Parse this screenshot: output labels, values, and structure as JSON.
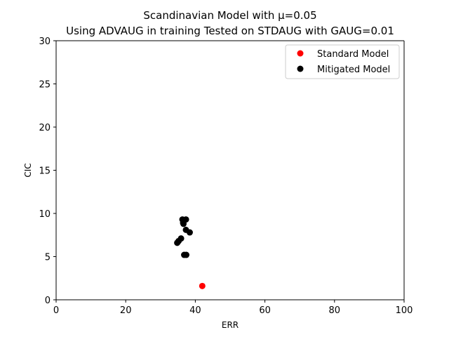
{
  "chart_data": {
    "type": "scatter",
    "title_lines": [
      "Scandinavian Model with μ=0.05",
      "Using ADVAUG in training Tested on STDAUG with GAUG=0.01"
    ],
    "xlabel": "ERR",
    "ylabel": "CIC",
    "xlim": [
      0,
      100
    ],
    "ylim": [
      0,
      30
    ],
    "xticks": [
      0,
      20,
      40,
      60,
      80,
      100
    ],
    "yticks": [
      0,
      5,
      10,
      15,
      20,
      25,
      30
    ],
    "grid": false,
    "legend_position": "top-right",
    "series": [
      {
        "name": "Standard Model",
        "color": "#ff0000",
        "points": [
          [
            42.0,
            1.6
          ]
        ]
      },
      {
        "name": "Mitigated Model",
        "color": "#000000",
        "points": [
          [
            36.3,
            9.3
          ],
          [
            37.3,
            9.3
          ],
          [
            36.5,
            8.9
          ],
          [
            36.6,
            8.8
          ],
          [
            37.3,
            8.1
          ],
          [
            38.4,
            7.8
          ],
          [
            35.9,
            7.1
          ],
          [
            35.2,
            6.8
          ],
          [
            34.8,
            6.6
          ],
          [
            36.8,
            5.2
          ],
          [
            37.4,
            5.2
          ]
        ]
      }
    ]
  }
}
